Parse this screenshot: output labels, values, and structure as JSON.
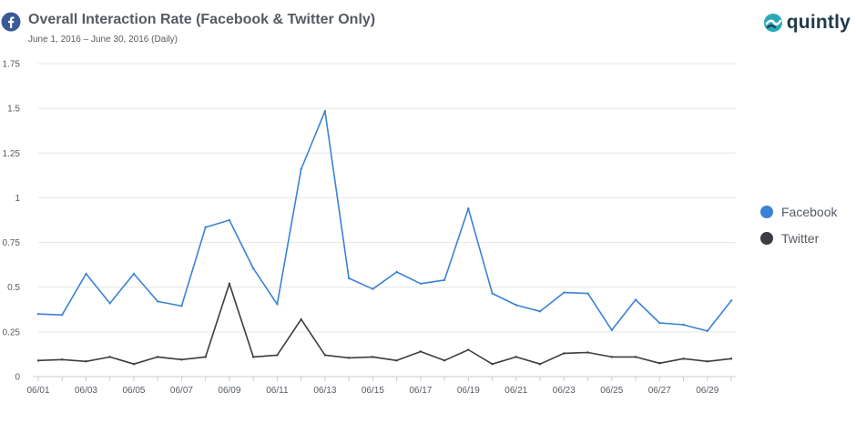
{
  "header": {
    "title": "Overall Interaction Rate (Facebook & Twitter Only)",
    "subtitle": "June 1, 2016 – June 30, 2016 (Daily)",
    "brand": "quintly"
  },
  "icons": {
    "header_icon": "facebook-icon",
    "brand_icon": "quintly-logo-icon"
  },
  "colors": {
    "facebook": "#3a82d6",
    "twitter": "#3b3d42",
    "grid": "#e6e6e6",
    "axis": "#cccccc"
  },
  "chart_data": {
    "type": "line",
    "title": "Overall Interaction Rate (Facebook & Twitter Only)",
    "xlabel": "",
    "ylabel": "",
    "x": [
      "06/01",
      "06/02",
      "06/03",
      "06/04",
      "06/05",
      "06/06",
      "06/07",
      "06/08",
      "06/09",
      "06/10",
      "06/11",
      "06/12",
      "06/13",
      "06/14",
      "06/15",
      "06/16",
      "06/17",
      "06/18",
      "06/19",
      "06/20",
      "06/21",
      "06/22",
      "06/23",
      "06/24",
      "06/25",
      "06/26",
      "06/27",
      "06/28",
      "06/29",
      "06/30"
    ],
    "x_tick_labels": [
      "06/01",
      "06/03",
      "06/05",
      "06/07",
      "06/09",
      "06/11",
      "06/13",
      "06/15",
      "06/17",
      "06/19",
      "06/21",
      "06/23",
      "06/25",
      "06/27",
      "06/29"
    ],
    "y_ticks": [
      0,
      0.25,
      0.5,
      0.75,
      1,
      1.25,
      1.5,
      1.75
    ],
    "y_tick_labels": [
      "0",
      "0.25",
      "0.5",
      "0.75",
      "1",
      "1.25",
      "1.5",
      "1.75"
    ],
    "ylim": [
      0,
      1.75
    ],
    "grid": true,
    "legend_position": "right",
    "series": [
      {
        "name": "Facebook",
        "color": "#3a82d6",
        "values": [
          0.35,
          0.345,
          0.575,
          0.41,
          0.575,
          0.42,
          0.395,
          0.835,
          0.875,
          0.605,
          0.405,
          1.16,
          1.485,
          0.55,
          0.49,
          0.585,
          0.52,
          0.54,
          0.94,
          0.465,
          0.4,
          0.365,
          0.47,
          0.465,
          0.26,
          0.43,
          0.3,
          0.29,
          0.255,
          0.425
        ]
      },
      {
        "name": "Twitter",
        "color": "#3b3d42",
        "values": [
          0.09,
          0.095,
          0.085,
          0.11,
          0.07,
          0.11,
          0.095,
          0.11,
          0.52,
          0.11,
          0.12,
          0.32,
          0.12,
          0.105,
          0.11,
          0.09,
          0.14,
          0.09,
          0.15,
          0.07,
          0.11,
          0.07,
          0.13,
          0.135,
          0.11,
          0.11,
          0.075,
          0.1,
          0.085,
          0.1
        ]
      }
    ]
  }
}
